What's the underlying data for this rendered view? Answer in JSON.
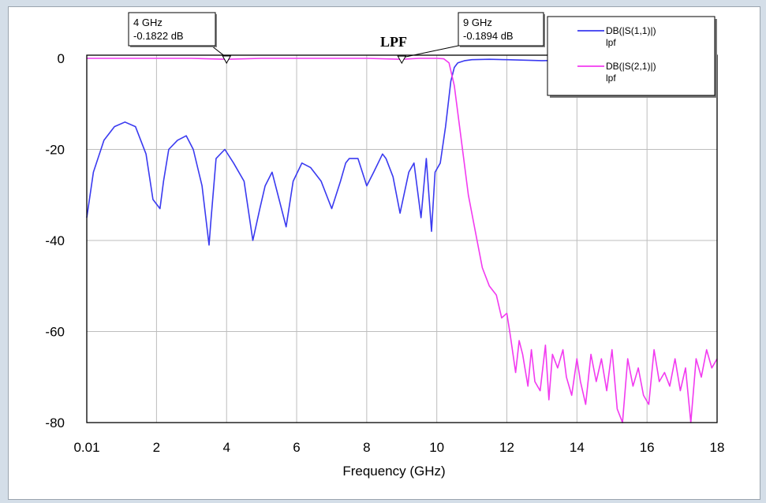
{
  "chart_data": {
    "type": "line",
    "xlabel": "Frequency (GHz)",
    "ylabel": "",
    "title": "LPF",
    "xlim": [
      0.01,
      18
    ],
    "ylim": [
      -80,
      5
    ],
    "x_ticks": [
      "0.01",
      "2",
      "4",
      "6",
      "8",
      "10",
      "12",
      "14",
      "16",
      "18"
    ],
    "x_tick_values": [
      0.01,
      2,
      4,
      6,
      8,
      10,
      12,
      14,
      16,
      18
    ],
    "y_ticks": [
      "0",
      "-20",
      "-40",
      "-60",
      "-80"
    ],
    "y_tick_values": [
      0,
      -20,
      -40,
      -60,
      -80
    ],
    "grid": true,
    "legend_position": "top-right",
    "series": [
      {
        "name": "DB(|S(1,1)|)",
        "subname": "lpf",
        "color": "#3a3af0",
        "x": [
          0.01,
          0.2,
          0.5,
          0.8,
          1.1,
          1.4,
          1.7,
          1.9,
          2.1,
          2.2,
          2.35,
          2.6,
          2.85,
          3.05,
          3.3,
          3.5,
          3.55,
          3.7,
          3.95,
          4.2,
          4.5,
          4.75,
          4.95,
          5.1,
          5.3,
          5.5,
          5.7,
          5.9,
          6.15,
          6.4,
          6.7,
          7.0,
          7.25,
          7.4,
          7.5,
          7.75,
          8.0,
          8.2,
          8.45,
          8.55,
          8.75,
          8.95,
          9.2,
          9.35,
          9.55,
          9.7,
          9.85,
          9.95,
          10.1,
          10.25,
          10.4,
          10.5,
          10.6,
          10.8,
          11.0,
          11.5,
          12.0,
          13.0,
          14.0,
          15.0,
          16.0,
          17.0,
          18.0
        ],
        "y": [
          -35,
          -25,
          -18,
          -15,
          -14,
          -15,
          -21,
          -31,
          -33,
          -27,
          -20,
          -18,
          -17,
          -20,
          -28,
          -41,
          -36,
          -22,
          -20,
          -23,
          -27,
          -40,
          -33,
          -28,
          -25,
          -31,
          -37,
          -27,
          -23,
          -24,
          -27,
          -33,
          -27,
          -23,
          -22,
          -22,
          -28,
          -25,
          -21,
          -22,
          -26,
          -34,
          -25,
          -23,
          -35,
          -22,
          -38,
          -25,
          -23,
          -15,
          -5,
          -2,
          -1,
          -0.5,
          -0.3,
          -0.2,
          -0.3,
          -0.5,
          -0.4,
          -0.3,
          -0.2,
          -0.3,
          -0.2
        ]
      },
      {
        "name": "DB(|S(2,1)|)",
        "subname": "lpf",
        "color": "#f23af0",
        "x": [
          0.01,
          1,
          2,
          3,
          4,
          5,
          6,
          7,
          8,
          9,
          9.5,
          10.0,
          10.2,
          10.35,
          10.5,
          10.7,
          10.9,
          11.1,
          11.3,
          11.5,
          11.7,
          11.85,
          12.0,
          12.1,
          12.25,
          12.35,
          12.45,
          12.6,
          12.7,
          12.8,
          12.95,
          13.1,
          13.2,
          13.3,
          13.45,
          13.6,
          13.7,
          13.85,
          14.0,
          14.1,
          14.25,
          14.4,
          14.55,
          14.7,
          14.85,
          15.0,
          15.15,
          15.3,
          15.45,
          15.6,
          15.75,
          15.9,
          16.05,
          16.2,
          16.35,
          16.5,
          16.65,
          16.8,
          16.95,
          17.1,
          17.25,
          17.4,
          17.55,
          17.7,
          17.85,
          18.0
        ],
        "y": [
          0,
          0,
          0,
          0,
          -0.2,
          0,
          0,
          0,
          0,
          -0.2,
          0,
          0,
          -0.1,
          -1,
          -6,
          -18,
          -30,
          -38,
          -46,
          -50,
          -52,
          -57,
          -56,
          -61,
          -69,
          -62,
          -65,
          -72,
          -64,
          -71,
          -73,
          -63,
          -75,
          -65,
          -68,
          -64,
          -70,
          -74,
          -66,
          -71,
          -76,
          -65,
          -71,
          -66,
          -73,
          -64,
          -77,
          -80,
          -66,
          -72,
          -68,
          -74,
          -76,
          -64,
          -71,
          -69,
          -72,
          -66,
          -73,
          -68,
          -80,
          -66,
          -70,
          -64,
          -68,
          -66
        ]
      }
    ],
    "markers": [
      {
        "x": 4,
        "y": -0.1822,
        "label_freq": "4 GHz",
        "label_val": "-0.1822 dB"
      },
      {
        "x": 9,
        "y": -0.1894,
        "label_freq": "9 GHz",
        "label_val": "-0.1894 dB"
      }
    ]
  }
}
